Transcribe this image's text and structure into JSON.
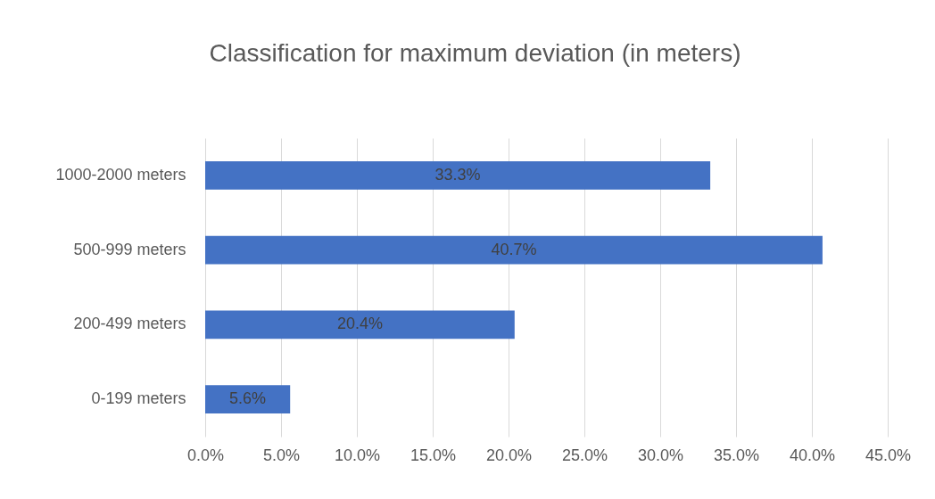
{
  "chart_data": {
    "type": "bar",
    "orientation": "horizontal",
    "title": "Classification for maximum deviation (in meters)",
    "categories": [
      "1000-2000 meters",
      "500-999 meters",
      "200-499 meters",
      "0-199 meters"
    ],
    "values": [
      33.3,
      40.7,
      20.4,
      5.6
    ],
    "value_labels": [
      "33.3%",
      "40.7%",
      "20.4%",
      "5.6%"
    ],
    "color": "#4472c4",
    "xlim": [
      0,
      45
    ],
    "xticks": [
      {
        "value": 0,
        "label": "0.0%"
      },
      {
        "value": 5,
        "label": "5.0%"
      },
      {
        "value": 10,
        "label": "10.0%"
      },
      {
        "value": 15,
        "label": "15.0%"
      },
      {
        "value": 20,
        "label": "20.0%"
      },
      {
        "value": 25,
        "label": "25.0%"
      },
      {
        "value": 30,
        "label": "30.0%"
      },
      {
        "value": 35,
        "label": "35.0%"
      },
      {
        "value": 40,
        "label": "40.0%"
      },
      {
        "value": 45,
        "label": "45.0%"
      }
    ],
    "grid": "x"
  }
}
